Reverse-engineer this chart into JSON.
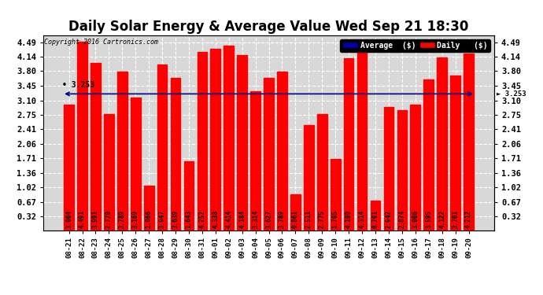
{
  "title": "Daily Solar Energy & Average Value Wed Sep 21 18:30",
  "copyright": "Copyright 2016 Cartronics.com",
  "average_value": 3.253,
  "bar_color": "#ff0000",
  "average_line_color": "#000080",
  "background_color": "#ffffff",
  "plot_bg_color": "#d8d8d8",
  "categories": [
    "08-21",
    "08-22",
    "08-23",
    "08-24",
    "08-25",
    "08-26",
    "08-27",
    "08-28",
    "08-29",
    "08-30",
    "08-31",
    "09-01",
    "09-02",
    "09-03",
    "09-04",
    "09-05",
    "09-06",
    "09-07",
    "09-08",
    "09-09",
    "09-10",
    "09-11",
    "09-12",
    "09-13",
    "09-14",
    "09-15",
    "09-16",
    "09-17",
    "09-18",
    "09-19",
    "09-20"
  ],
  "values": [
    3.004,
    4.491,
    3.991,
    2.77,
    3.789,
    3.169,
    1.066,
    3.947,
    3.639,
    1.643,
    4.252,
    4.338,
    4.414,
    4.184,
    3.314,
    3.627,
    3.789,
    0.861,
    2.511,
    2.775,
    1.705,
    4.1,
    4.314,
    0.701,
    2.942,
    2.874,
    3.006,
    3.595,
    4.122,
    3.701,
    4.212
  ],
  "yticks": [
    0.32,
    0.67,
    1.02,
    1.36,
    1.71,
    2.06,
    2.41,
    2.75,
    3.1,
    3.45,
    3.8,
    4.14,
    4.49
  ],
  "ylim_min": 0.0,
  "ylim_max": 4.65,
  "grid_color": "#aaaaaa",
  "title_fontsize": 12,
  "bar_value_fontsize": 5.5,
  "xlabel_fontsize": 6.5,
  "ylabel_fontsize": 7.5
}
